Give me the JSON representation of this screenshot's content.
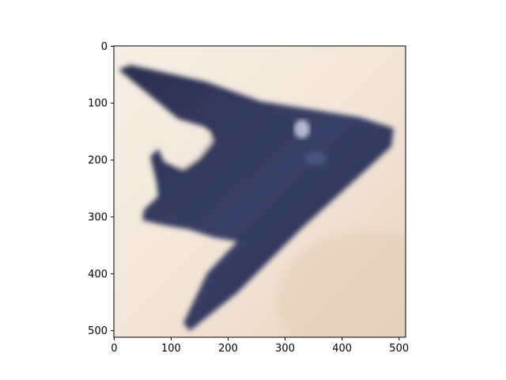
{
  "image_panel": {
    "subject": "stealth-aircraft-silhouette",
    "colors": {
      "background_light": "#f5ece3",
      "background_warm": "#ead9c8",
      "aircraft_dark": "#2b3050",
      "aircraft_mid": "#3a4168",
      "highlight": "#c5cde0"
    }
  },
  "axes": {
    "x_range": [
      0,
      511
    ],
    "y_range": [
      0,
      511
    ],
    "y_inverted": true,
    "x_ticks": [
      "0",
      "100",
      "200",
      "300",
      "400",
      "500"
    ],
    "y_ticks": [
      "0",
      "100",
      "200",
      "300",
      "400",
      "500"
    ]
  }
}
